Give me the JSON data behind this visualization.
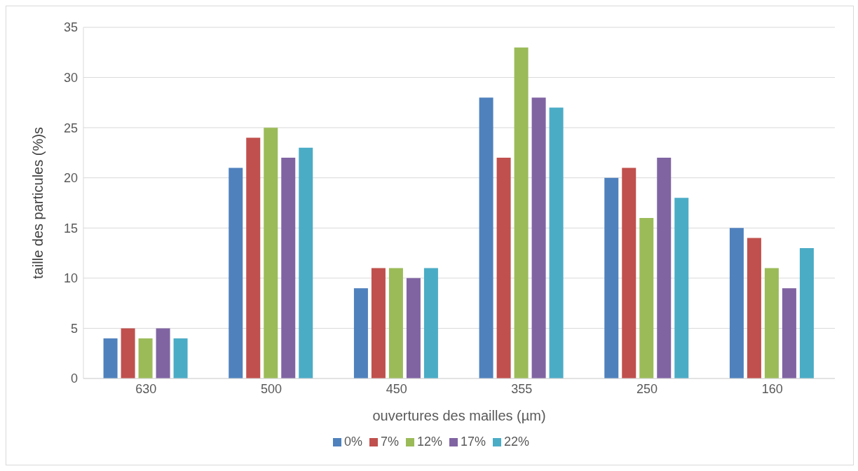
{
  "chart_data": {
    "type": "bar",
    "xlabel": "ouvertures des mailles (µm)",
    "ylabel": "taille des particules (%)s",
    "categories": [
      "630",
      "500",
      "450",
      "355",
      "250",
      "160"
    ],
    "series": [
      {
        "name": "0%",
        "color": "#4f81bd",
        "values": [
          4,
          21,
          9,
          28,
          20,
          15
        ]
      },
      {
        "name": "7%",
        "color": "#c0504d",
        "values": [
          5,
          24,
          11,
          22,
          21,
          14
        ]
      },
      {
        "name": "12%",
        "color": "#9bbb59",
        "values": [
          4,
          25,
          11,
          33,
          16,
          11
        ]
      },
      {
        "name": "17%",
        "color": "#8064a2",
        "values": [
          5,
          22,
          10,
          28,
          22,
          9
        ]
      },
      {
        "name": "22%",
        "color": "#4bacc6",
        "values": [
          4,
          23,
          11,
          27,
          18,
          13
        ]
      }
    ],
    "ylim": [
      0,
      35
    ],
    "yticks": [
      0,
      5,
      10,
      15,
      20,
      25,
      30,
      35
    ],
    "grid": "y",
    "legend": "bottom"
  }
}
